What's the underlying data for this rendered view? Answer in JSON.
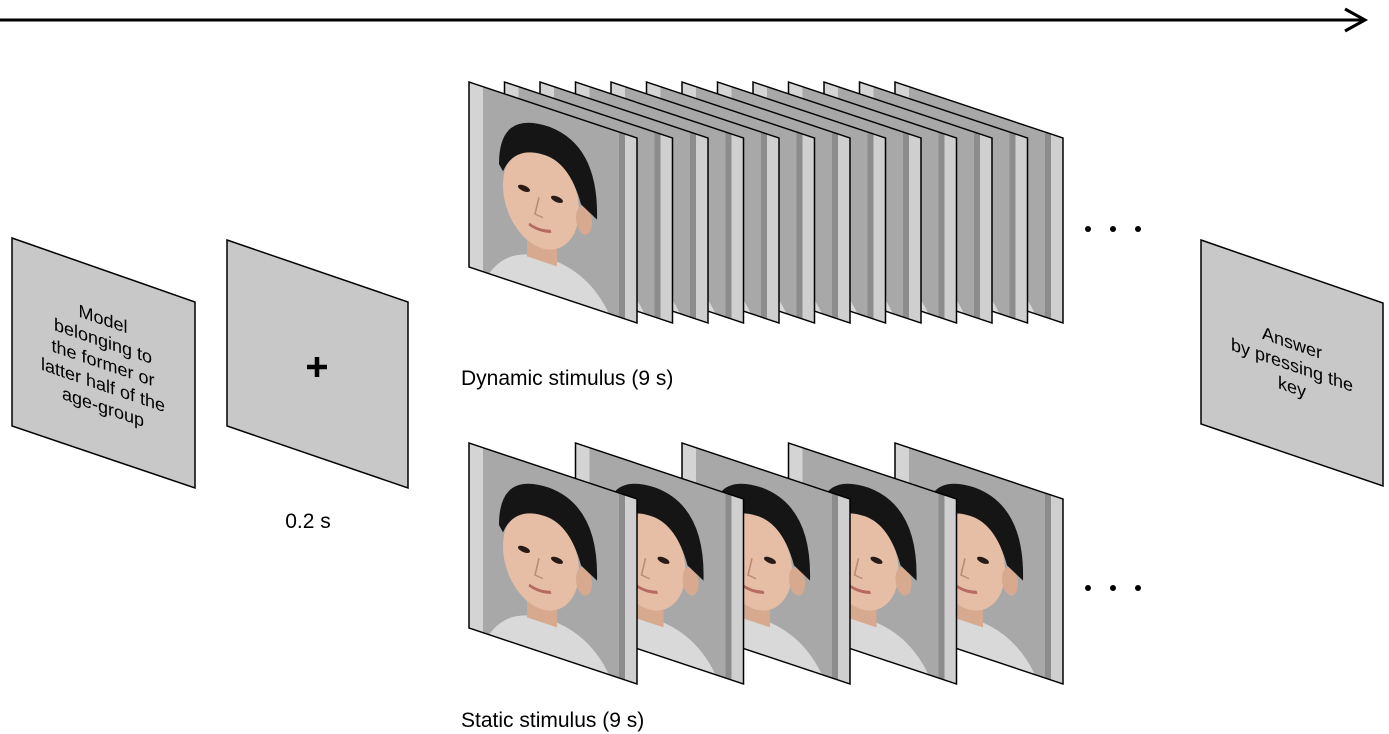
{
  "cue": {
    "lines": [
      "Model",
      "belonging to",
      "the former or",
      "latter half of the",
      "age-group"
    ]
  },
  "fixation": {
    "duration": "0.2 s"
  },
  "dynamic": {
    "label": "Dynamic stimulus (9 s)"
  },
  "static": {
    "label": "Static stimulus (9 s)"
  },
  "answer": {
    "lines": [
      "Answer",
      "by pressing the",
      "key"
    ]
  }
}
